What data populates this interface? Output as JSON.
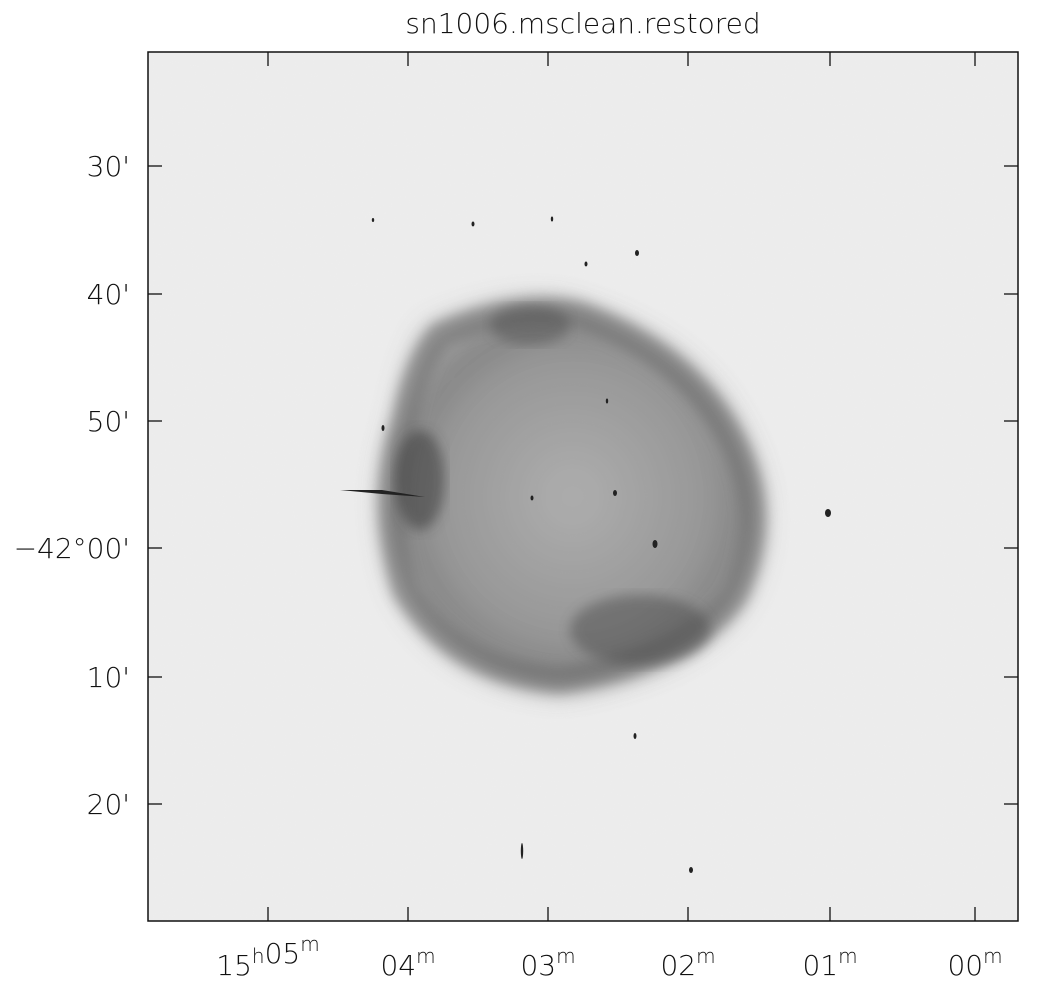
{
  "header": {
    "title": "sn1006.msclean.restored"
  },
  "x_axis": {
    "tick_labels": [
      "15h05m",
      "04m",
      "03m",
      "02m",
      "01m",
      "00m"
    ]
  },
  "y_axis": {
    "tick_labels": [
      "30'",
      "40'",
      "50'",
      "−42°00'",
      "10'",
      "20'"
    ]
  }
}
